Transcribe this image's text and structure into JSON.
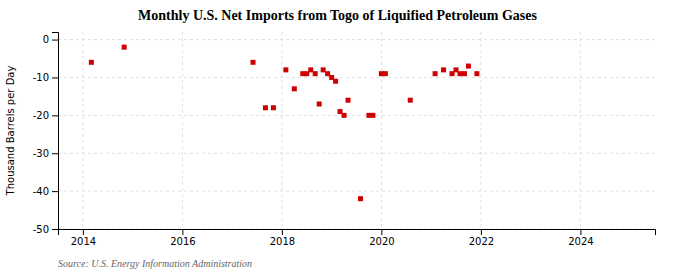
{
  "chart_data": {
    "type": "scatter",
    "title": "Monthly U.S. Net Imports from Togo of Liquified Petroleum Gases",
    "y_label": "Thousand Barrels per Day",
    "source": "Source: U.S. Energy Information Administration",
    "color": "#cc0000",
    "marker": "square",
    "grid": true,
    "xlim": [
      2013.5,
      2025.5
    ],
    "ylim": [
      -50,
      2
    ],
    "xticks": [
      2014,
      2016,
      2018,
      2020,
      2022,
      2024
    ],
    "yticks": [
      0,
      -10,
      -20,
      -30,
      -40,
      -50
    ],
    "x": [
      2014.17,
      2014.83,
      2017.42,
      2017.67,
      2017.83,
      2018.08,
      2018.25,
      2018.42,
      2018.5,
      2018.58,
      2018.67,
      2018.75,
      2018.83,
      2018.92,
      2019.0,
      2019.08,
      2019.17,
      2019.25,
      2019.33,
      2019.58,
      2019.75,
      2019.83,
      2020.0,
      2020.08,
      2020.58,
      2021.08,
      2021.25,
      2021.42,
      2021.5,
      2021.58,
      2021.67,
      2021.75,
      2021.92
    ],
    "values": [
      -6,
      -2,
      -6,
      -18,
      -18,
      -8,
      -13,
      -9,
      -9,
      -8,
      -9,
      -17,
      -8,
      -9,
      -10,
      -11,
      -19,
      -20,
      -16,
      -42,
      -20,
      -20,
      -9,
      -9,
      -16,
      -9,
      -8,
      -9,
      -8,
      -9,
      -9,
      -7,
      -9
    ]
  }
}
